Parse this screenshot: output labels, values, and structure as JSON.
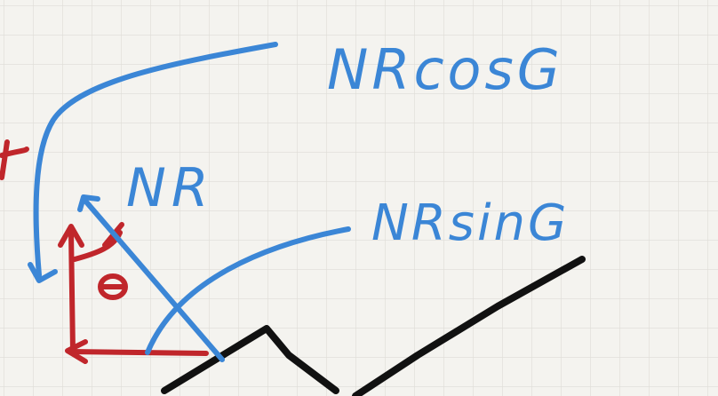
{
  "labels": {
    "normal_cos": "NRcosG",
    "normal": "NR",
    "normal_sin": "NRsinG",
    "angle": "θ"
  },
  "colors": {
    "background": "#f4f3ef",
    "grid": "#dedcd6",
    "blue": "#3b86d6",
    "red": "#c0262b",
    "black": "#111111"
  }
}
